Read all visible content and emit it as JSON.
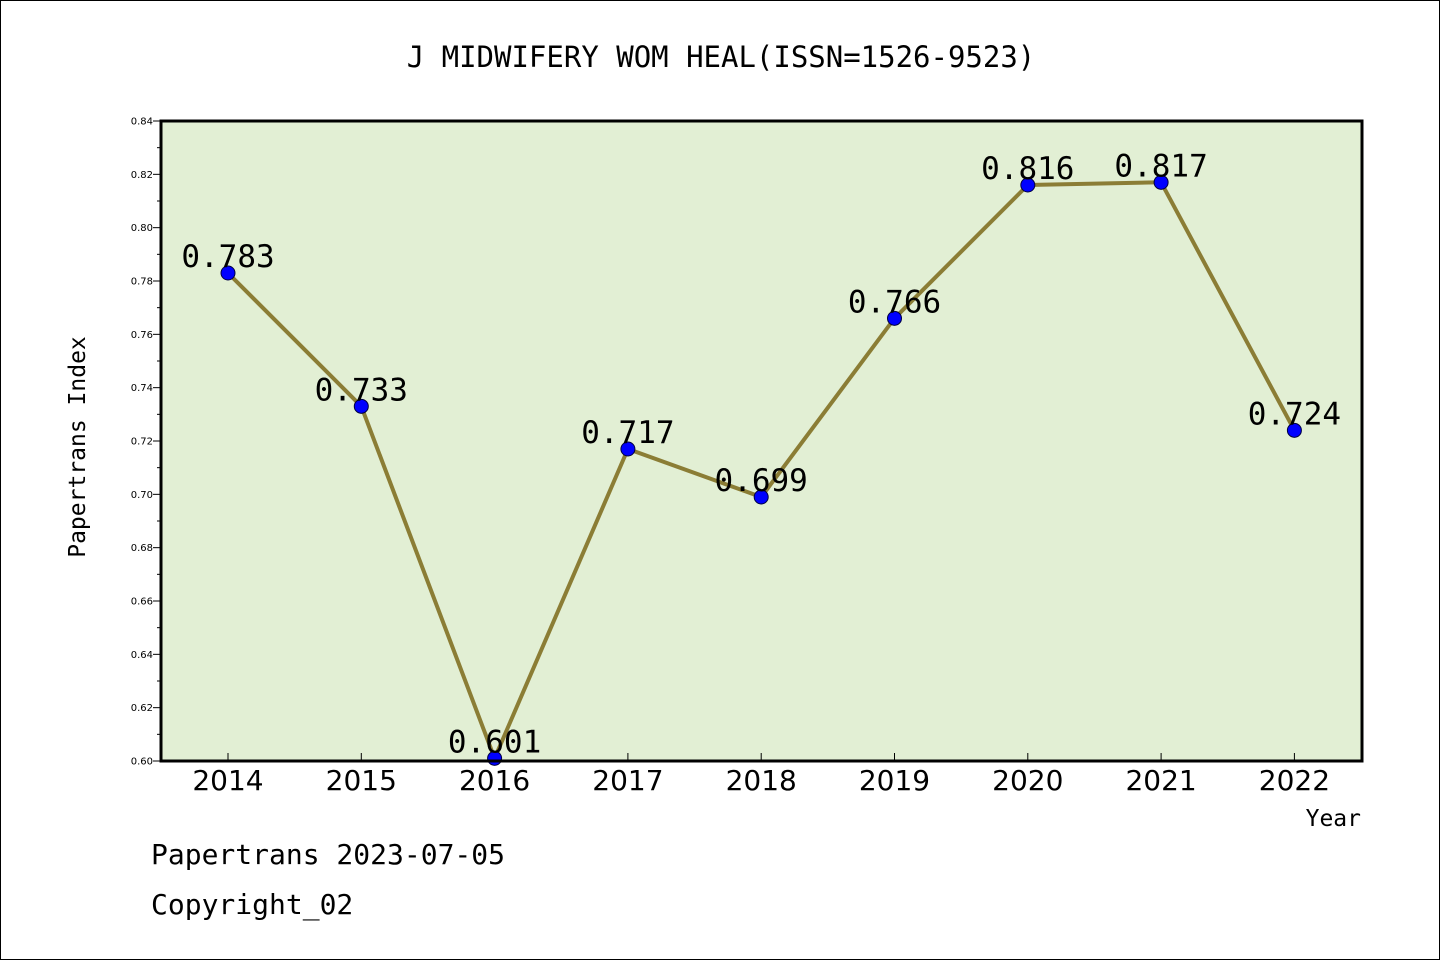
{
  "chart_data": {
    "type": "line",
    "title": "J MIDWIFERY WOM HEAL(ISSN=1526-9523)",
    "xlabel": "Year",
    "ylabel": "Papertrans Index",
    "categories": [
      "2014",
      "2015",
      "2016",
      "2017",
      "2018",
      "2019",
      "2020",
      "2021",
      "2022"
    ],
    "values": [
      0.783,
      0.733,
      0.601,
      0.717,
      0.699,
      0.766,
      0.816,
      0.817,
      0.724
    ],
    "data_labels": [
      "0.783",
      "0.733",
      "0.601",
      "0.717",
      "0.699",
      "0.766",
      "0.816",
      "0.817",
      "0.724"
    ],
    "ylim": [
      0.6,
      0.84
    ],
    "yticks": [
      "0.60",
      "0.62",
      "0.64",
      "0.66",
      "0.68",
      "0.70",
      "0.72",
      "0.74",
      "0.76",
      "0.78",
      "0.80",
      "0.82",
      "0.84"
    ],
    "grid": false,
    "colors": {
      "plot_background": "#e2efd4",
      "line": "#8b7d35",
      "marker": "#0000ff"
    }
  },
  "footer": {
    "source": "Papertrans 2023-07-05",
    "copyright": "Copyright_02"
  }
}
